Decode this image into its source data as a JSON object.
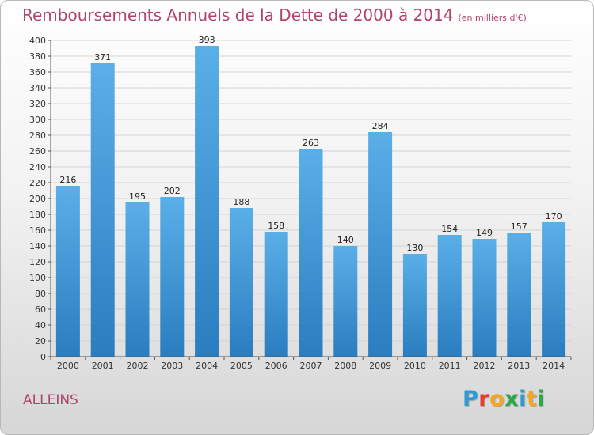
{
  "title": "Remboursements Annuels de la Dette de 2000 à 2014",
  "unit": "(en milliers d'€)",
  "commune": "ALLEINS",
  "logo": {
    "letters": [
      "P",
      "r",
      "o",
      "x",
      "i",
      "t",
      "i"
    ],
    "colors": [
      "#2f9ad6",
      "#e63b2e",
      "#f4a623",
      "#2aa84a",
      "#2f9ad6",
      "#f4a623",
      "#2aa84a"
    ]
  },
  "chart_data": {
    "type": "bar",
    "categories": [
      "2000",
      "2001",
      "2002",
      "2003",
      "2004",
      "2005",
      "2006",
      "2007",
      "2008",
      "2009",
      "2010",
      "2011",
      "2012",
      "2013",
      "2014"
    ],
    "values": [
      216,
      371,
      195,
      202,
      393,
      188,
      158,
      263,
      140,
      284,
      130,
      154,
      149,
      157,
      170
    ],
    "title": "Remboursements Annuels de la Dette de 2000 à 2014",
    "xlabel": "",
    "ylabel": "",
    "ylim": [
      0,
      400
    ],
    "ytick_step": 20,
    "grid": true,
    "bar_color_top": "#5aafe8",
    "bar_color_bottom": "#2a7dbf"
  }
}
